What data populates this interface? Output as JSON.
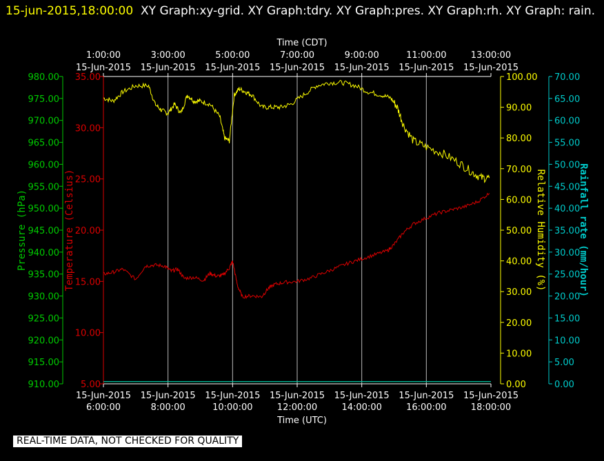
{
  "header": {
    "timestamp": "15-jun-2015,18:00:00",
    "graphs": "XY Graph:xy-grid.  XY Graph:tdry.  XY Graph:pres.  XY Graph:rh.  XY Graph: rain."
  },
  "footer": {
    "notice": "REAL-TIME DATA, NOT CHECKED FOR QUALITY"
  },
  "colors": {
    "pressure": "#00cc00",
    "temperature": "#dd0000",
    "humidity": "#ffff00",
    "rain": "#00cccc",
    "grid": "#ffffff"
  },
  "chart_data": {
    "type": "line",
    "title": "",
    "x_top_label": "Time (CDT)",
    "x_bottom_label": "Time (UTC)",
    "x_ticks_utc": [
      {
        "time": "6:00:00",
        "date": "15-Jun-2015"
      },
      {
        "time": "8:00:00",
        "date": "15-Jun-2015"
      },
      {
        "time": "10:00:00",
        "date": "15-Jun-2015"
      },
      {
        "time": "12:00:00",
        "date": "15-Jun-2015"
      },
      {
        "time": "14:00:00",
        "date": "15-Jun-2015"
      },
      {
        "time": "16:00:00",
        "date": "15-Jun-2015"
      },
      {
        "time": "18:00:00",
        "date": "15-Jun-2015"
      }
    ],
    "x_ticks_cdt": [
      {
        "time": "1:00:00",
        "date": "15-Jun-2015"
      },
      {
        "time": "3:00:00",
        "date": "15-Jun-2015"
      },
      {
        "time": "5:00:00",
        "date": "15-Jun-2015"
      },
      {
        "time": "7:00:00",
        "date": "15-Jun-2015"
      },
      {
        "time": "9:00:00",
        "date": "15-Jun-2015"
      },
      {
        "time": "11:00:00",
        "date": "15-Jun-2015"
      },
      {
        "time": "13:00:00",
        "date": "15-Jun-2015"
      }
    ],
    "xlim_utc_hours": [
      6,
      18
    ],
    "grid": true,
    "axes": {
      "pressure": {
        "label": "Pressure (hPa)",
        "lim": [
          910,
          980
        ],
        "ticks": [
          "980.00",
          "975.00",
          "970.00",
          "965.00",
          "960.00",
          "955.00",
          "950.00",
          "945.00",
          "940.00",
          "935.00",
          "930.00",
          "925.00",
          "920.00",
          "915.00",
          "910.00"
        ]
      },
      "temperature": {
        "label": "Temperature (Celsius)",
        "lim": [
          5,
          35
        ],
        "ticks": [
          "35.00",
          "30.00",
          "25.00",
          "20.00",
          "15.00",
          "10.00",
          "5.00"
        ]
      },
      "humidity": {
        "label": "Relative Humidity (%)",
        "lim": [
          0,
          100
        ],
        "ticks": [
          "100.00",
          "90.00",
          "80.00",
          "70.00",
          "60.00",
          "50.00",
          "40.00",
          "30.00",
          "20.00",
          "10.00",
          "0.00"
        ]
      },
      "rain": {
        "label": "Rainfall rate (mm/hour)",
        "lim": [
          0,
          70
        ],
        "ticks": [
          "70.00",
          "65.00",
          "60.00",
          "55.00",
          "50.00",
          "45.00",
          "40.00",
          "35.00",
          "30.00",
          "25.00",
          "20.00",
          "15.00",
          "10.00",
          "5.00",
          "0.00"
        ]
      }
    },
    "series": [
      {
        "axis": "humidity",
        "x": [
          6.0,
          6.3,
          6.6,
          7.0,
          7.4,
          7.6,
          7.8,
          8.0,
          8.2,
          8.4,
          8.6,
          8.8,
          9.0,
          9.3,
          9.6,
          9.75,
          9.9,
          10.05,
          10.2,
          10.4,
          10.6,
          10.9,
          11.2,
          11.5,
          11.8,
          12.2,
          12.6,
          13.0,
          13.4,
          13.8,
          14.2,
          14.6,
          14.9,
          15.1,
          15.3,
          15.6,
          16.0,
          16.5,
          17.0,
          17.4,
          17.7,
          17.95
        ],
        "values": [
          93,
          92,
          95,
          97,
          97,
          91,
          89,
          88,
          91,
          88,
          94,
          92,
          92,
          91,
          87,
          80,
          79,
          94,
          96,
          95,
          94,
          90,
          90,
          90,
          91,
          94,
          97,
          98,
          98,
          97,
          95,
          94,
          93,
          90,
          84,
          79,
          77,
          75,
          72,
          69,
          67,
          67
        ]
      },
      {
        "axis": "temperature",
        "x": [
          6.0,
          6.3,
          6.6,
          7.0,
          7.3,
          7.6,
          7.9,
          8.1,
          8.3,
          8.5,
          8.8,
          9.1,
          9.3,
          9.5,
          9.7,
          9.9,
          10.0,
          10.15,
          10.3,
          10.6,
          10.9,
          11.1,
          11.3,
          11.6,
          12.0,
          12.4,
          12.8,
          13.2,
          13.6,
          14.0,
          14.4,
          14.8,
          15.0,
          15.3,
          15.6,
          16.0,
          16.4,
          16.8,
          17.2,
          17.6,
          17.95
        ],
        "values": [
          15.7,
          15.9,
          16.2,
          15.2,
          16.5,
          16.6,
          16.5,
          16.0,
          16.2,
          15.3,
          15.4,
          15.1,
          15.8,
          15.5,
          15.6,
          16.3,
          17.0,
          14.6,
          13.5,
          13.6,
          13.5,
          14.3,
          14.7,
          14.9,
          15.0,
          15.3,
          15.8,
          16.3,
          16.8,
          17.2,
          17.6,
          18.0,
          18.6,
          19.8,
          20.6,
          21.2,
          21.7,
          22.0,
          22.3,
          22.8,
          23.6
        ]
      },
      {
        "axis": "pressure",
        "x": [
          6.0,
          18.0
        ],
        "values": [
          910.5,
          910.5
        ]
      },
      {
        "axis": "rain",
        "x": [
          6.0,
          18.0
        ],
        "values": [
          0.5,
          0.5
        ]
      }
    ]
  }
}
